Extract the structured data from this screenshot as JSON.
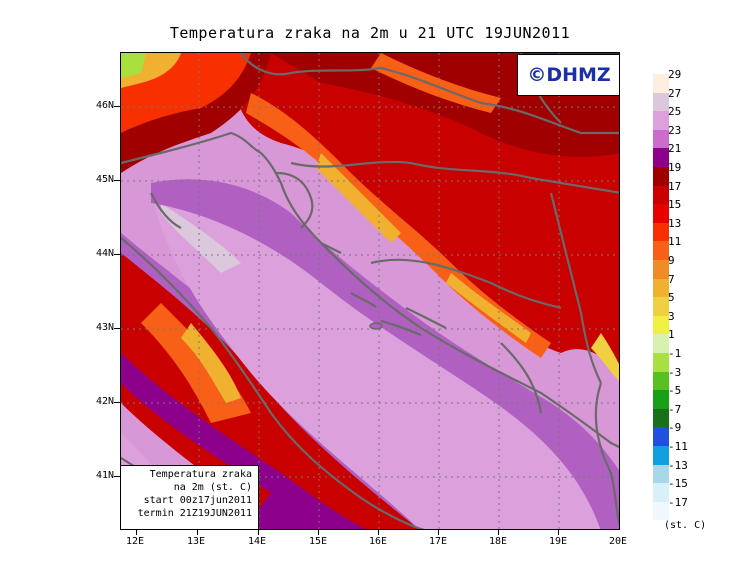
{
  "title": "Temperatura zraka na 2m u 21 UTC 19JUN2011",
  "logo_text": "©DHMZ",
  "info_box": {
    "line1": "Temperatura zraka",
    "line2": "na 2m (st. C)",
    "line3": "start 00z17jun2011",
    "line4": "termin 21Z19JUN2011"
  },
  "latitude_labels": [
    "46N",
    "45N",
    "44N",
    "43N",
    "42N",
    "41N"
  ],
  "longitude_labels": [
    "12E",
    "13E",
    "14E",
    "15E",
    "16E",
    "17E",
    "18E",
    "19E",
    "20E"
  ],
  "legend": {
    "labels": [
      "29",
      "27",
      "25",
      "23",
      "21",
      "19",
      "17",
      "15",
      "13",
      "11",
      "9",
      "7",
      "5",
      "3",
      "1",
      "-1",
      "-3",
      "-5",
      "-7",
      "-9",
      "-11",
      "-13",
      "-15",
      "-17"
    ],
    "colors": [
      "#fdeee0",
      "#dcc8dc",
      "#dca0dc",
      "#cc6ccc",
      "#8c008c",
      "#a00000",
      "#c80000",
      "#e80000",
      "#f83000",
      "#f86018",
      "#f08c28",
      "#f0b030",
      "#f0d040",
      "#f0f040",
      "#d8f0b0",
      "#a8e040",
      "#58c020",
      "#18a018",
      "#187018",
      "#2050e0",
      "#10a0e0",
      "#a8d8e8",
      "#d8f0f8",
      "#f0f8ff"
    ],
    "unit": "(st. C)"
  }
}
